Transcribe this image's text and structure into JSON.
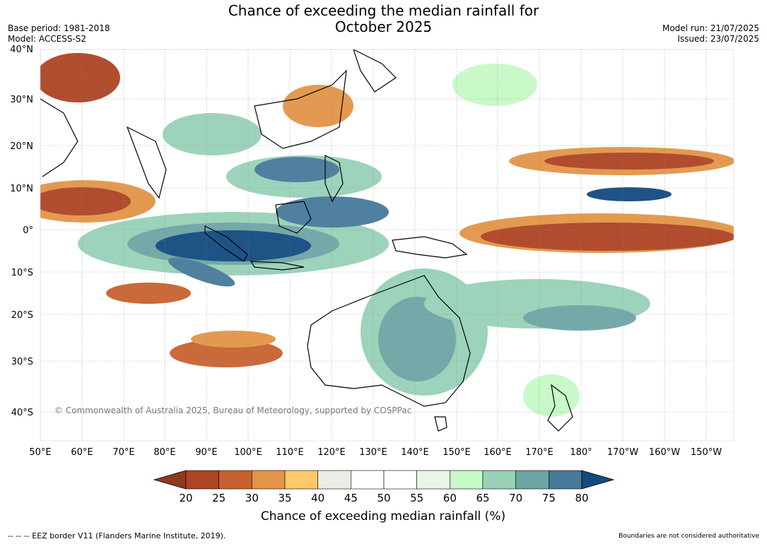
{
  "title_line1": "Chance of exceeding the median rainfall for",
  "title_line2": "October 2025",
  "base_period": "Base period: 1981-2018",
  "model": "Model: ACCESS-S2",
  "model_run": "Model run: 21/07/2025",
  "issued": "Issued: 23/07/2025",
  "lat_labels": [
    "40°N",
    "30°N",
    "20°N",
    "10°N",
    "0°",
    "10°S",
    "20°S",
    "30°S",
    "40°S"
  ],
  "lon_labels": [
    "50°E",
    "60°E",
    "70°E",
    "80°E",
    "90°E",
    "100°E",
    "110°E",
    "120°E",
    "130°E",
    "140°E",
    "150°E",
    "160°E",
    "170°E",
    "180°",
    "170°W",
    "160°W",
    "150°W"
  ],
  "colorbar": {
    "ticks": [
      "20",
      "25",
      "30",
      "35",
      "40",
      "45",
      "50",
      "55",
      "60",
      "65",
      "70",
      "75",
      "80"
    ],
    "colors": [
      "#8f3a1f",
      "#ad4423",
      "#c86130",
      "#e29547",
      "#fec86a",
      "#edebe5",
      "#ffffff",
      "#ffffff",
      "#e8f5e8",
      "#c6f9c6",
      "#98d1b8",
      "#6ea5a5",
      "#477a9a",
      "#134a80"
    ],
    "label": "Chance of exceeding median rainfall (%)"
  },
  "copyright": "© Commonwealth of Australia 2025, Bureau of Meteorology, supported by COSPPac",
  "footer_left": "--  --  -- EEZ border V11 (Flanders Marine Institute, 2019).",
  "footer_right": "Boundaries are not considered authoritative"
}
